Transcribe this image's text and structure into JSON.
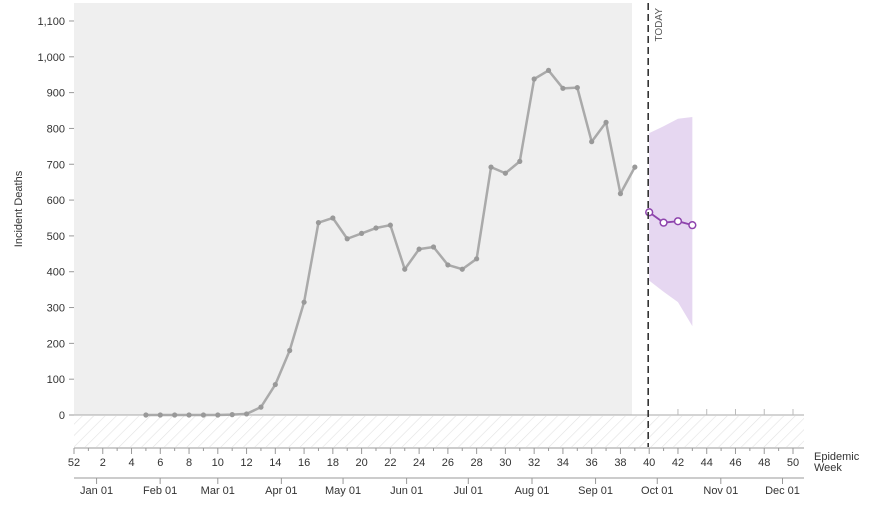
{
  "chart_data": {
    "type": "line",
    "ylabel": "Incident Deaths",
    "xlabel": "Epidemic Week",
    "xlabel_lines": [
      "Epidemic",
      "Week"
    ],
    "today_label": "TODAY",
    "today_week": 40,
    "ylim": [
      0,
      1100
    ],
    "y_ticks": [
      0,
      100,
      200,
      300,
      400,
      500,
      600,
      700,
      800,
      900,
      1000,
      1100
    ],
    "y_tick_labels": [
      "0",
      "100",
      "200",
      "300",
      "400",
      "500",
      "600",
      "700",
      "800",
      "900",
      "1,000",
      "1,100"
    ],
    "week_ticks": [
      0,
      2,
      4,
      6,
      8,
      10,
      12,
      14,
      16,
      18,
      20,
      22,
      24,
      26,
      28,
      30,
      32,
      34,
      36,
      38,
      40,
      42,
      44,
      46,
      48,
      50
    ],
    "week_tick_labels": [
      "52",
      "2",
      "4",
      "6",
      "8",
      "10",
      "12",
      "14",
      "16",
      "18",
      "20",
      "22",
      "24",
      "26",
      "28",
      "30",
      "32",
      "34",
      "36",
      "38",
      "40",
      "42",
      "44",
      "46",
      "48",
      "50"
    ],
    "month_ticks": [
      1.57,
      5.99,
      10.0,
      14.42,
      18.71,
      23.13,
      27.42,
      31.85,
      36.27,
      40.56,
      44.98,
      49.27
    ],
    "month_labels": [
      "Jan 01",
      "Feb 01",
      "Mar 01",
      "Apr 01",
      "May 01",
      "Jun 01",
      "Jul 01",
      "Aug 01",
      "Sep 01",
      "Oct 01",
      "Nov 01",
      "Dec 01"
    ],
    "observed": {
      "x": [
        5,
        6,
        7,
        8,
        9,
        10,
        11,
        12,
        13,
        14,
        15,
        16,
        17,
        18,
        19,
        20,
        21,
        22,
        23,
        24,
        25,
        26,
        27,
        28,
        29,
        30,
        31,
        32,
        33,
        34,
        35,
        36,
        37,
        38,
        39
      ],
      "y": [
        0,
        0,
        0,
        0,
        0,
        0,
        1,
        3,
        22,
        85,
        180,
        315,
        537,
        550,
        492,
        507,
        522,
        530,
        407,
        463,
        469,
        419,
        407,
        436,
        692,
        675,
        708,
        938,
        962,
        912,
        914,
        763,
        817,
        618,
        692
      ],
      "color": "#aaaaaa"
    },
    "forecast": {
      "x": [
        40,
        41,
        42,
        43
      ],
      "y": [
        566,
        537,
        541,
        530
      ],
      "upper": [
        787,
        806,
        827,
        832
      ],
      "lower": [
        375,
        344,
        315,
        248
      ],
      "color": "#8e44ad",
      "band_color": "#e3d3ef"
    },
    "grid": false
  }
}
